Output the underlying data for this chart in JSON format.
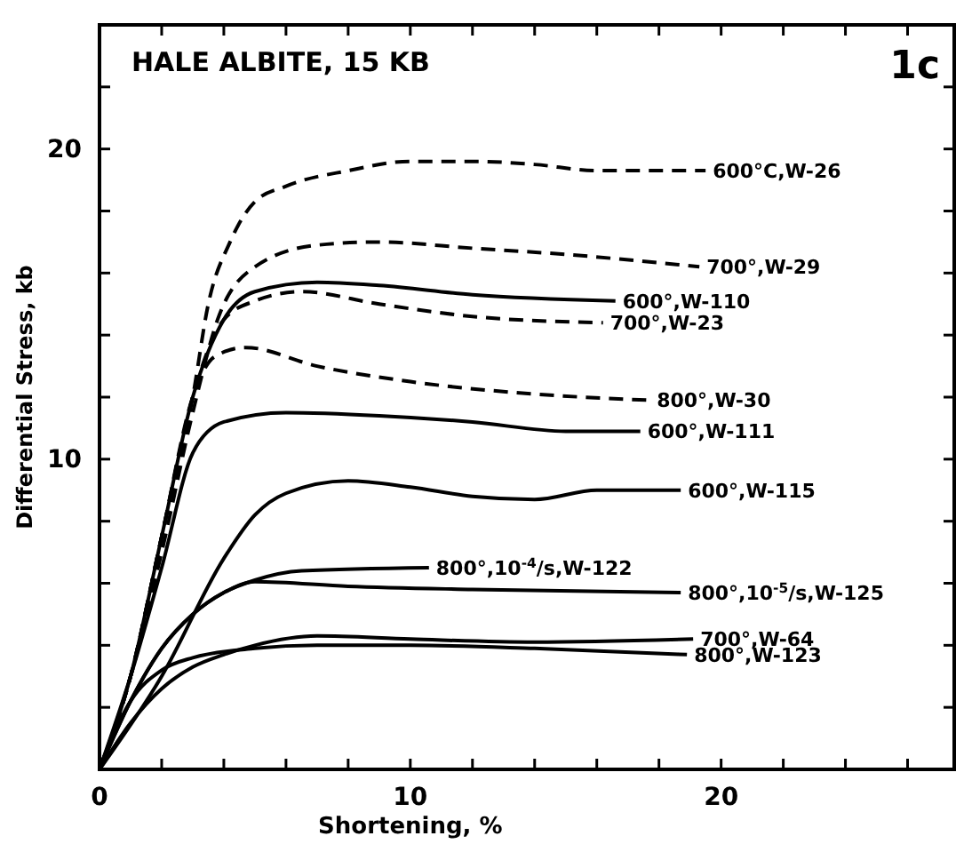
{
  "chart_data": {
    "type": "line",
    "title": "HALE ALBITE, 15 KB",
    "xlabel": "Shortening, %",
    "ylabel": "Differential Stress, kb",
    "annotations": [
      "1c"
    ],
    "xlim": [
      0,
      27.5
    ],
    "ylim": [
      0,
      24
    ],
    "xticks": [
      0,
      {
        "value": 2,
        "label": null
      },
      {
        "value": 4,
        "label": null
      },
      {
        "value": 6,
        "label": null
      },
      {
        "value": 8,
        "label": null
      },
      10,
      {
        "value": 12,
        "label": null
      },
      {
        "value": 14,
        "label": null
      },
      {
        "value": 16,
        "label": null
      },
      {
        "value": 18,
        "label": null
      },
      20,
      {
        "value": 22,
        "label": null
      },
      {
        "value": 24,
        "label": null
      },
      {
        "value": 26,
        "label": null
      }
    ],
    "yticks": [
      {
        "value": 0,
        "label": null
      },
      {
        "value": 2,
        "label": null
      },
      {
        "value": 4,
        "label": null
      },
      {
        "value": 6,
        "label": null
      },
      {
        "value": 8,
        "label": null
      },
      10,
      {
        "value": 12,
        "label": null
      },
      {
        "value": 14,
        "label": null
      },
      {
        "value": 16,
        "label": null
      },
      {
        "value": 18,
        "label": null
      },
      20,
      {
        "value": 22,
        "label": null
      }
    ],
    "grid": false,
    "marker": "none",
    "series": [
      {
        "name": "600°C,W-26",
        "color": "#000000",
        "line_style": "dashed",
        "x": [
          0,
          1,
          2,
          3,
          3.5,
          4.2,
          5,
          6,
          8,
          10,
          12,
          14,
          16,
          19.5
        ],
        "values": [
          0,
          3,
          7.5,
          12,
          15,
          17,
          18.3,
          18.8,
          19.3,
          19.6,
          19.6,
          19.5,
          19.3,
          19.3
        ]
      },
      {
        "name": "700°,W-29",
        "color": "#000000",
        "line_style": "dashed",
        "x": [
          0,
          1,
          2,
          3,
          3.8,
          5,
          7,
          9,
          12,
          15,
          19.3
        ],
        "values": [
          0,
          3,
          7,
          11.5,
          14.5,
          16.2,
          16.9,
          17,
          16.8,
          16.6,
          16.2
        ]
      },
      {
        "name": "600°,W-110",
        "color": "#000000",
        "line_style": "solid",
        "x": [
          0,
          1,
          2,
          3,
          4,
          5,
          7,
          9,
          12,
          16.6
        ],
        "values": [
          0,
          3,
          7.5,
          12,
          14.5,
          15.4,
          15.7,
          15.6,
          15.3,
          15.1
        ]
      },
      {
        "name": "700°,W-23",
        "color": "#000000",
        "line_style": "dashed",
        "x": [
          0,
          1,
          2,
          3,
          4,
          5,
          6.5,
          9,
          12,
          16.2
        ],
        "values": [
          0,
          3,
          7.5,
          12,
          14.5,
          15.1,
          15.4,
          15,
          14.6,
          14.4
        ]
      },
      {
        "name": "800°,W-30",
        "color": "#000000",
        "line_style": "dashed",
        "x": [
          0,
          1,
          2,
          3,
          3.7,
          4.7,
          7,
          10,
          14,
          17.7
        ],
        "values": [
          0,
          3,
          7.5,
          12,
          13.3,
          13.6,
          13,
          12.5,
          12.1,
          11.9
        ]
      },
      {
        "name": "600°,W-111",
        "color": "#000000",
        "line_style": "solid",
        "x": [
          0,
          1,
          2,
          3,
          4,
          6,
          9,
          12,
          15,
          17.4
        ],
        "values": [
          0,
          3,
          6.5,
          10.2,
          11.2,
          11.5,
          11.4,
          11.2,
          10.9,
          10.9
        ]
      },
      {
        "name": "600°,W-115",
        "color": "#000000",
        "line_style": "solid",
        "x": [
          0,
          2,
          4,
          5,
          6,
          8,
          10,
          12,
          14,
          16,
          18.7
        ],
        "values": [
          0,
          3,
          6.8,
          8.2,
          8.9,
          9.3,
          9.1,
          8.8,
          8.7,
          9,
          9
        ]
      },
      {
        "name": "800°,10$^{-4}$/s,W-122",
        "color": "#000000",
        "line_style": "solid",
        "x": [
          0,
          1,
          2,
          3,
          4,
          5,
          6.5,
          10.6
        ],
        "values": [
          0,
          2.2,
          3.9,
          5,
          5.7,
          6.1,
          6.4,
          6.5
        ]
      },
      {
        "name": "800°,10$^{-5}$/s,W-125",
        "color": "#000000",
        "line_style": "solid",
        "x": [
          0,
          1,
          2,
          3,
          4,
          5,
          8,
          12,
          18.7
        ],
        "values": [
          0,
          2.2,
          3.9,
          5,
          5.7,
          6.05,
          5.9,
          5.8,
          5.7
        ]
      },
      {
        "name": "700°,W-64",
        "color": "#000000",
        "line_style": "solid",
        "x": [
          0,
          1,
          2,
          3,
          4,
          5,
          7,
          10,
          14,
          19.1
        ],
        "values": [
          0,
          1.5,
          2.6,
          3.3,
          3.7,
          4,
          4.3,
          4.2,
          4.1,
          4.2
        ]
      },
      {
        "name": "800°,W-123",
        "color": "#000000",
        "line_style": "solid",
        "x": [
          0,
          1,
          2,
          3,
          5,
          7,
          10,
          14,
          18.9
        ],
        "values": [
          0,
          2.2,
          3.2,
          3.6,
          3.9,
          4,
          4,
          3.9,
          3.7
        ]
      }
    ]
  }
}
